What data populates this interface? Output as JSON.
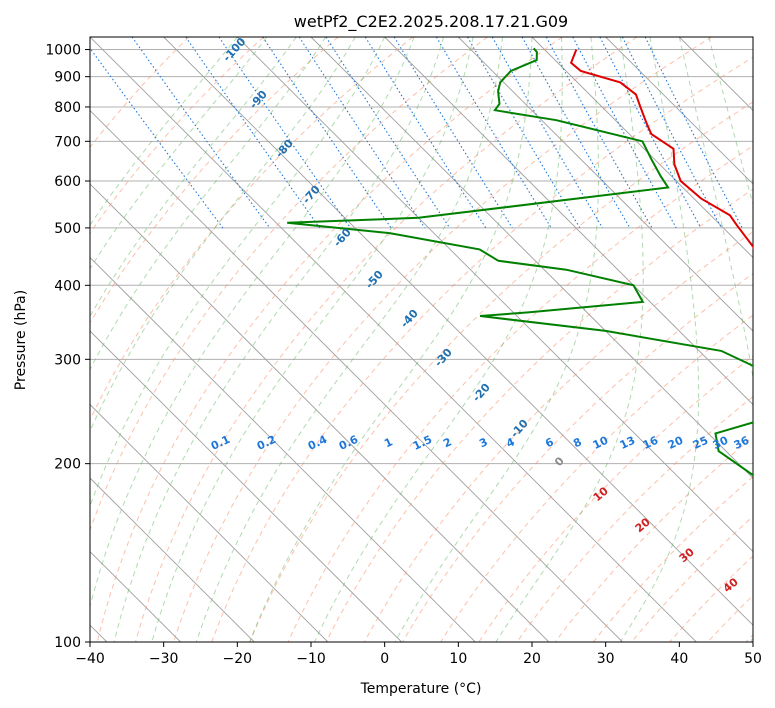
{
  "chart_data": {
    "type": "skew-t",
    "title": "wetPf2_C2E2.2025.208.17.21.G09",
    "xlabel": "Temperature (°C)",
    "ylabel": "Pressure (hPa)",
    "xlim": [
      -40,
      50
    ],
    "ylim": [
      1050,
      100
    ],
    "y_scale": "log",
    "grid": true,
    "x_ticks": [
      -40,
      -30,
      -20,
      -10,
      0,
      10,
      20,
      30,
      40,
      50
    ],
    "y_ticks": [
      100,
      200,
      300,
      400,
      500,
      600,
      700,
      800,
      900,
      1000
    ],
    "colors": {
      "temperature": "#e00000",
      "dewpoint": "#008000",
      "isotherm": "#a0a0a0",
      "dry_adiabat": "#fa8c64",
      "moist_adiabat": "#64b464",
      "mixing_ratio": "#1e78dc",
      "adiabat_label": "#2070b0",
      "dry_adiabat_label": "#d02020"
    },
    "series": [
      {
        "name": "temperature",
        "points": [
          [
            2.5,
            100
          ],
          [
            -0.5,
            110
          ],
          [
            -1,
            125
          ],
          [
            -1,
            150
          ],
          [
            -0.5,
            165
          ],
          [
            3,
            185
          ],
          [
            7,
            215
          ],
          [
            8.8,
            235
          ],
          [
            9,
            250
          ],
          [
            11,
            280
          ],
          [
            13.5,
            320
          ],
          [
            15.5,
            360
          ],
          [
            17.8,
            400
          ],
          [
            20.5,
            445
          ],
          [
            21.5,
            465
          ],
          [
            22.2,
            505
          ],
          [
            22.6,
            525
          ],
          [
            21,
            560
          ],
          [
            20.6,
            600
          ],
          [
            22,
            640
          ],
          [
            24,
            680
          ],
          [
            23,
            720
          ],
          [
            23.8,
            750
          ],
          [
            25.2,
            800
          ],
          [
            26.3,
            840
          ],
          [
            25.8,
            880
          ],
          [
            22,
            920
          ],
          [
            21.8,
            950
          ],
          [
            24.3,
            1000
          ]
        ]
      },
      {
        "name": "dewpoint",
        "points": [
          [
            2,
            100
          ],
          [
            -0.5,
            112
          ],
          [
            -1,
            120
          ],
          [
            0,
            130
          ],
          [
            -3,
            140
          ],
          [
            -2,
            150
          ],
          [
            -7,
            175
          ],
          [
            -9.5,
            190
          ],
          [
            -11,
            210
          ],
          [
            -9,
            225
          ],
          [
            1,
            240
          ],
          [
            5,
            260
          ],
          [
            7,
            280
          ],
          [
            3,
            310
          ],
          [
            -10,
            335
          ],
          [
            -25,
            355
          ],
          [
            -18,
            360
          ],
          [
            -1,
            375
          ],
          [
            0,
            400
          ],
          [
            -7,
            425
          ],
          [
            -15,
            440
          ],
          [
            -16,
            460
          ],
          [
            -26,
            490
          ],
          [
            -38.5,
            510
          ],
          [
            -20,
            520
          ],
          [
            18,
            585
          ],
          [
            18.5,
            610
          ],
          [
            19.5,
            650
          ],
          [
            20.8,
            700
          ],
          [
            12,
            760
          ],
          [
            5,
            790
          ],
          [
            6.5,
            810
          ],
          [
            8,
            850
          ],
          [
            9.5,
            880
          ],
          [
            12.5,
            920
          ],
          [
            17.5,
            960
          ],
          [
            18.6,
            990
          ],
          [
            18.7,
            1005
          ]
        ]
      }
    ],
    "mixing_ratio_labels": [
      "0.1",
      "0.2",
      "0.4",
      "0.6",
      "1",
      "1.5",
      "2",
      "3",
      "4",
      "6",
      "8",
      "10",
      "13",
      "16",
      "20",
      "25",
      "30",
      "36"
    ],
    "moist_adiabat_labels": [
      "-100",
      "-90",
      "-80",
      "-70",
      "-60",
      "-50",
      "-40",
      "-30",
      "-20",
      "-10",
      "0"
    ],
    "dry_adiabat_labels": [
      "10",
      "20",
      "30",
      "40"
    ]
  }
}
